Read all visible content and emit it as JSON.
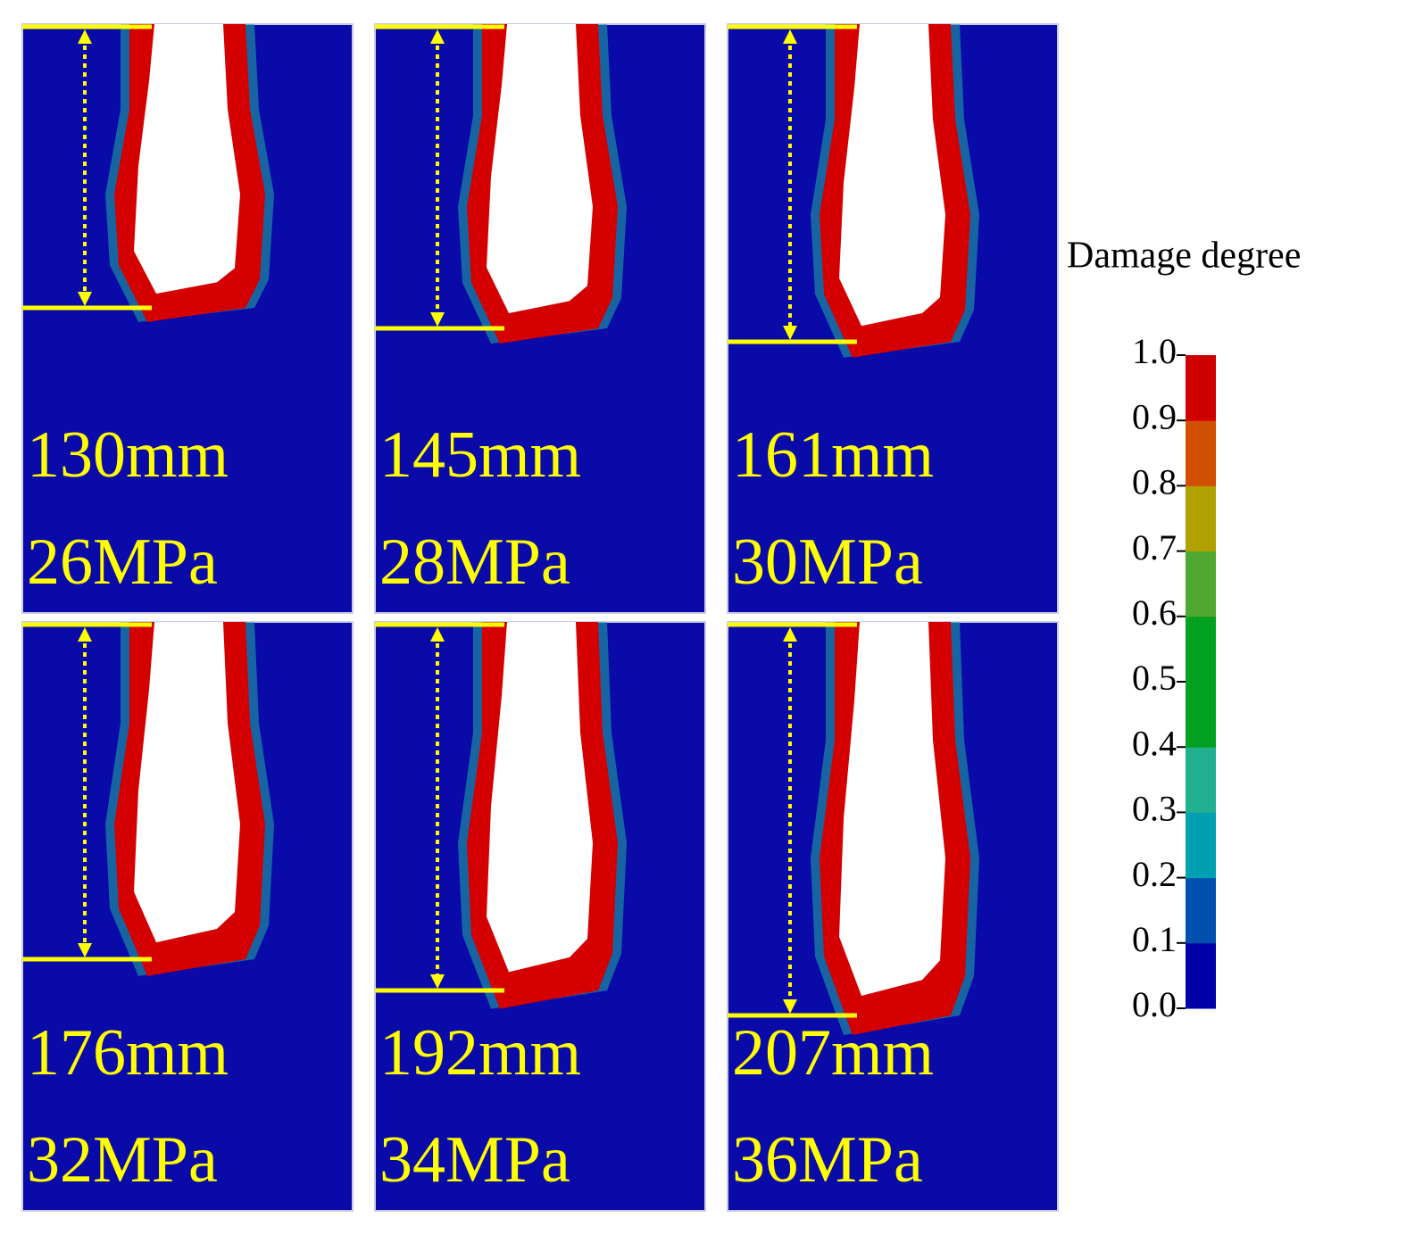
{
  "panels": [
    {
      "depth": "130mm",
      "pressure": "26MPa"
    },
    {
      "depth": "145mm",
      "pressure": "28MPa"
    },
    {
      "depth": "161mm",
      "pressure": "30MPa"
    },
    {
      "depth": "176mm",
      "pressure": "32MPa"
    },
    {
      "depth": "192mm",
      "pressure": "34MPa"
    },
    {
      "depth": "207mm",
      "pressure": "36MPa"
    }
  ],
  "legend": {
    "title": "Damage degree",
    "ticks": [
      "0.0",
      "0.1",
      "0.2",
      "0.3",
      "0.4",
      "0.5",
      "0.6",
      "0.7",
      "0.8",
      "0.9",
      "1.0"
    ],
    "colors": [
      "#0000a8",
      "#0050b0",
      "#00a0b0",
      "#20b090",
      "#00a020",
      "#00a020",
      "#50a830",
      "#b0a000",
      "#d05000",
      "#d00000"
    ]
  }
}
